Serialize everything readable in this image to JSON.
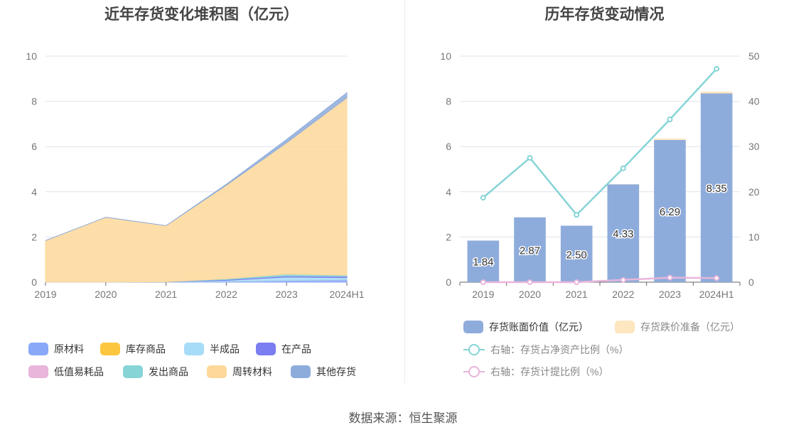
{
  "source_text": "数据来源：恒生聚源",
  "colors": {
    "raw_materials": "#8aa8f8",
    "goods_in_stock": "#fcc73f",
    "semi_finished": "#a6dcf8",
    "in_production": "#7b7ef0",
    "low_value_consumables": "#e8b5db",
    "goods_shipped": "#86d4d6",
    "revolving_materials": "#fdd89a",
    "other_inventory": "#8eacdb",
    "book_value_bar": "#8eacdb",
    "impairment_bar": "#fde6c0",
    "net_asset_ratio_line": "#86d4d6",
    "provision_ratio_line": "#e8b5db",
    "grid": "#e0e3ee",
    "axis": "#666666"
  },
  "chart_data": [
    {
      "type": "area",
      "title": "近年存货变化堆积图（亿元）",
      "x": [
        "2019",
        "2020",
        "2021",
        "2022",
        "2023",
        "2024H1"
      ],
      "ylim": [
        0,
        10
      ],
      "yticks": [
        "0",
        "2",
        "4",
        "6",
        "8",
        "10"
      ],
      "grid": true,
      "legend_position": "bottom",
      "series": [
        {
          "name": "原材料",
          "color_key": "raw_materials",
          "values": [
            0.01,
            0.01,
            0.01,
            0.03,
            0.08,
            0.12
          ]
        },
        {
          "name": "库存商品",
          "color_key": "goods_in_stock",
          "values": [
            0.0,
            0.0,
            0.0,
            0.0,
            0.0,
            0.0
          ]
        },
        {
          "name": "半成品",
          "color_key": "semi_finished",
          "values": [
            0.0,
            0.0,
            0.0,
            0.05,
            0.15,
            0.08
          ]
        },
        {
          "name": "在产品",
          "color_key": "in_production",
          "values": [
            0.0,
            0.0,
            0.01,
            0.04,
            0.05,
            0.06
          ]
        },
        {
          "name": "低值易耗品",
          "color_key": "low_value_consumables",
          "values": [
            0.0,
            0.0,
            0.0,
            0.0,
            0.0,
            0.0
          ]
        },
        {
          "name": "发出商品",
          "color_key": "goods_shipped",
          "values": [
            0.0,
            0.0,
            0.0,
            0.03,
            0.08,
            0.05
          ]
        },
        {
          "name": "周转材料",
          "color_key": "revolving_materials",
          "values": [
            1.83,
            2.86,
            2.48,
            4.14,
            5.81,
            7.85
          ]
        },
        {
          "name": "其他存货",
          "color_key": "other_inventory",
          "values": [
            0.0,
            0.0,
            0.0,
            0.04,
            0.14,
            0.22
          ]
        }
      ]
    },
    {
      "type": "bar",
      "title": "历年存货变动情况",
      "categories": [
        "2019",
        "2020",
        "2021",
        "2022",
        "2023",
        "2024H1"
      ],
      "ylim": [
        0,
        10
      ],
      "yticks": [
        "0",
        "2",
        "4",
        "6",
        "8",
        "10"
      ],
      "y2lim": [
        0,
        50
      ],
      "y2ticks": [
        "0",
        "10",
        "20",
        "30",
        "40",
        "50"
      ],
      "grid": true,
      "legend_position": "bottom",
      "series": [
        {
          "name": "存货账面价值（亿元）",
          "kind": "bar",
          "axis": "left",
          "color_key": "book_value_bar",
          "values": [
            1.84,
            2.87,
            2.5,
            4.33,
            6.29,
            8.35
          ],
          "labels": [
            "1.84",
            "2.87",
            "2.50",
            "4.33",
            "6.29",
            "8.35"
          ]
        },
        {
          "name": "存货跌价准备（亿元）",
          "kind": "bar",
          "axis": "left",
          "color_key": "impairment_bar",
          "values": [
            0.0,
            0.0,
            0.0,
            0.01,
            0.06,
            0.08
          ]
        },
        {
          "name": "右轴：存货占净资产比例（%）",
          "kind": "line",
          "axis": "right",
          "color_key": "net_asset_ratio_line",
          "values": [
            18.7,
            27.5,
            14.9,
            25.2,
            36.0,
            47.2
          ]
        },
        {
          "name": "右轴：存货计提比例（%）",
          "kind": "line",
          "axis": "right",
          "color_key": "provision_ratio_line",
          "values": [
            0.0,
            0.0,
            0.0,
            0.5,
            1.0,
            0.9
          ]
        }
      ]
    }
  ]
}
